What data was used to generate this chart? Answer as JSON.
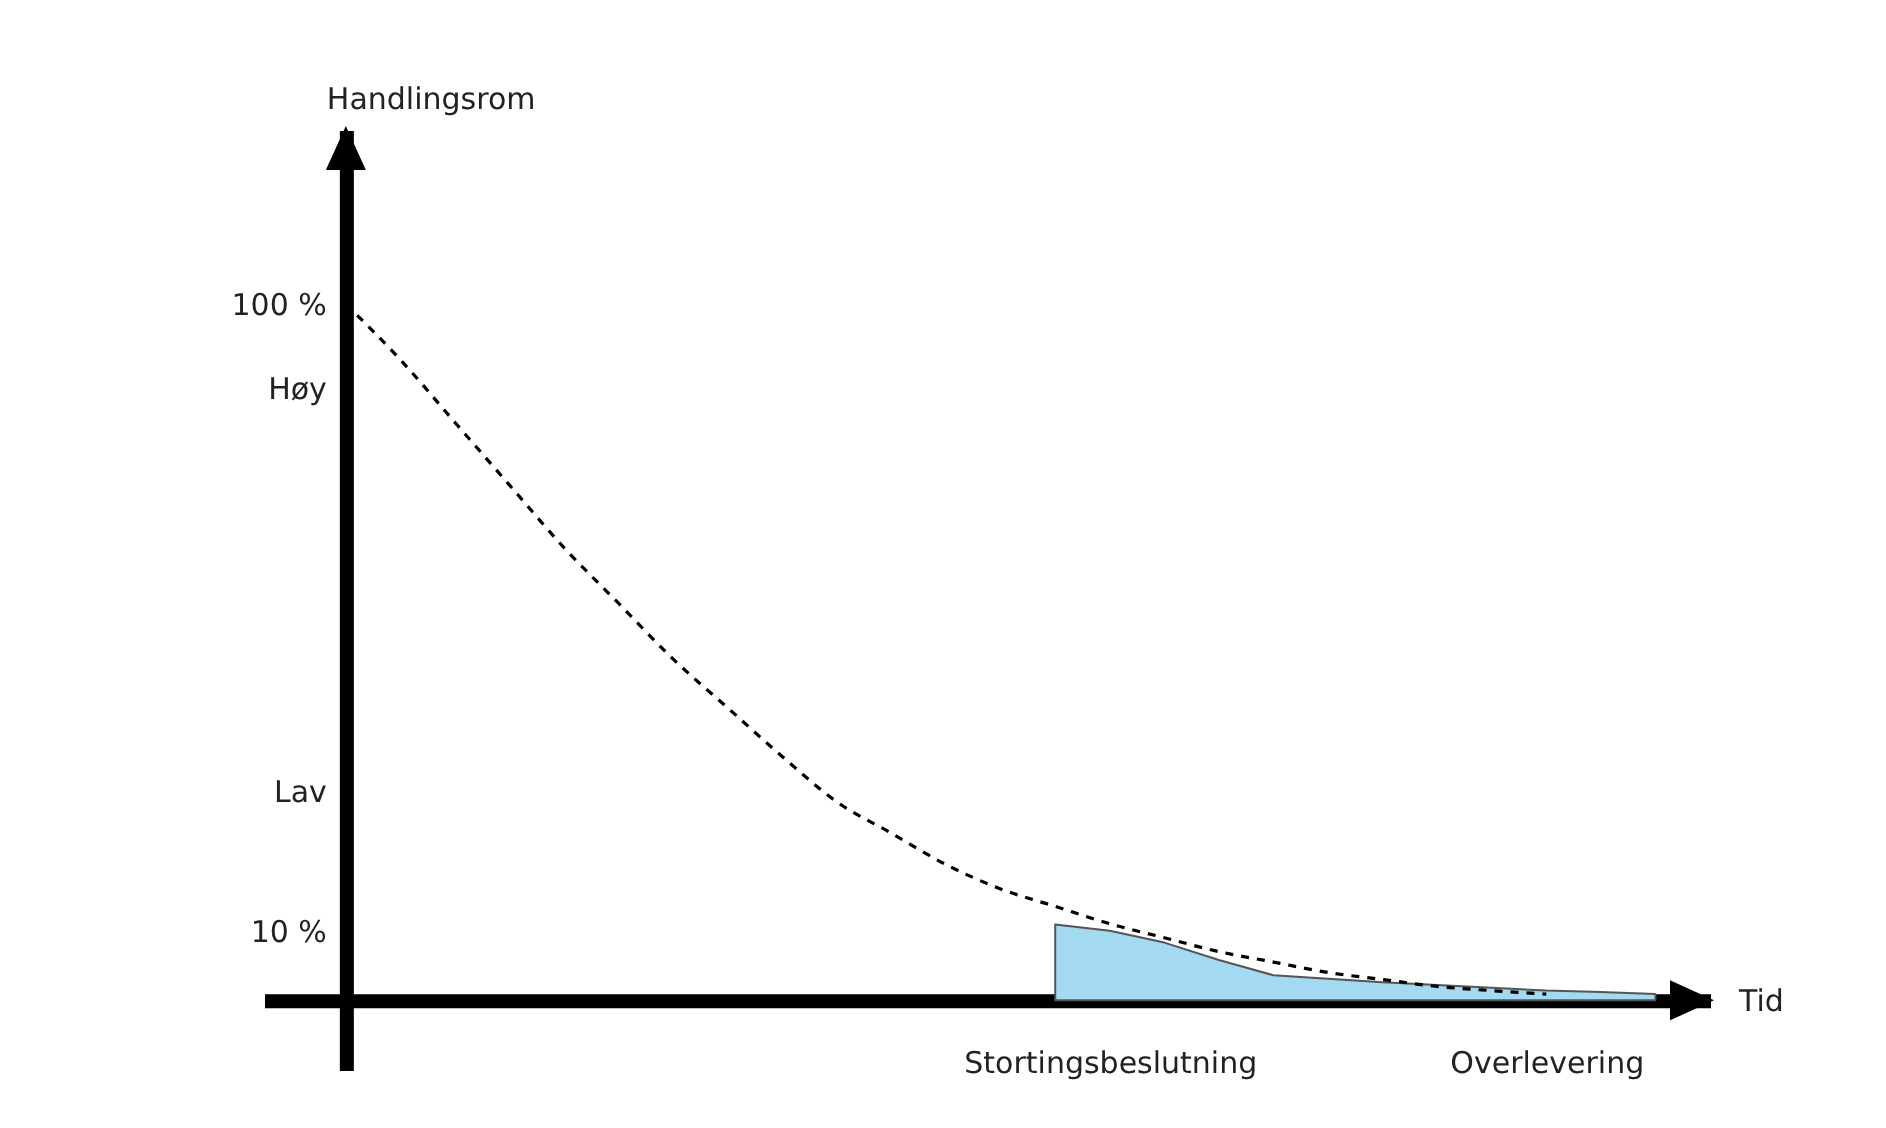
{
  "chart_data": {
    "type": "line",
    "xlabel": "Tid",
    "ylabel": "Handlingsrom",
    "categories": [
      null,
      null,
      null,
      null,
      null,
      null,
      null,
      null,
      null,
      null,
      null,
      null,
      null,
      null,
      "Stortingsbeslutning",
      null,
      null,
      null,
      null,
      null,
      null,
      null,
      "Overlevering",
      null,
      null,
      null
    ],
    "ylim": [
      -10,
      125
    ],
    "yticks": [
      {
        "value": 100,
        "label": "100 %"
      },
      {
        "value": 88,
        "label": "Høy"
      },
      {
        "value": 30,
        "label": "Lav"
      },
      {
        "value": 10,
        "label": "10 %"
      }
    ],
    "grid": false,
    "marker": "none",
    "series": [
      {
        "color": "#000000",
        "line_style": "dashed",
        "values": [
          100,
          92,
          83,
          74,
          65,
          57,
          49,
          42,
          35,
          28.5,
          24,
          19.5,
          16,
          13.5,
          11,
          9,
          7,
          5.5,
          4,
          3,
          2,
          1.4,
          0.9,
          null,
          null,
          null
        ]
      },
      {
        "type": "area",
        "color": "#a3daf2",
        "values": [
          null,
          null,
          null,
          null,
          null,
          null,
          null,
          null,
          null,
          null,
          null,
          null,
          null,
          10.9,
          10,
          8.3,
          5.8,
          3.6,
          3.1,
          2.6,
          2.2,
          1.8,
          1.4,
          1.2,
          0.9,
          null
        ]
      }
    ]
  }
}
